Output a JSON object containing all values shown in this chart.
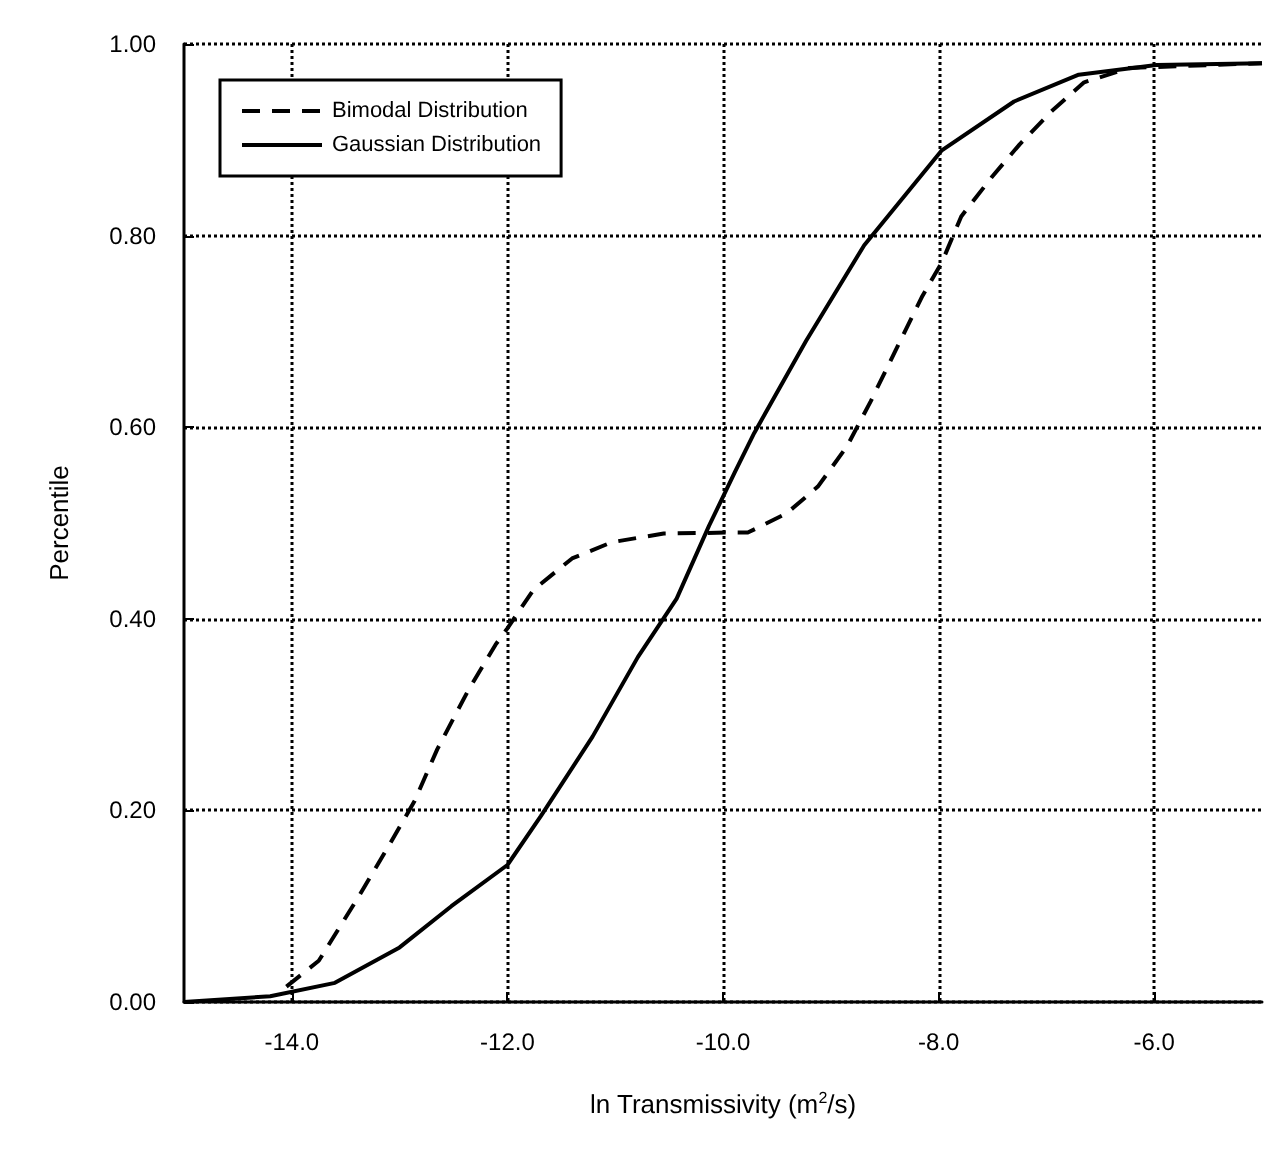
{
  "chart_data": {
    "type": "line",
    "xlabel": "ln Transmissivity (m$^{2}$/s)",
    "ylabel": "Percentile",
    "xlim": [
      -15,
      -5
    ],
    "ylim": [
      0,
      1
    ],
    "xticks": [
      {
        "value": -14,
        "label": "-14.0"
      },
      {
        "value": -12,
        "label": "-12.0"
      },
      {
        "value": -10,
        "label": "-10.0"
      },
      {
        "value": -8,
        "label": "-8.0"
      },
      {
        "value": -6,
        "label": "-6.0"
      }
    ],
    "yticks": [
      {
        "value": 0,
        "label": "0.00"
      },
      {
        "value": 0.2,
        "label": "0.20"
      },
      {
        "value": 0.4,
        "label": "0.40"
      },
      {
        "value": 0.6,
        "label": "0.60"
      },
      {
        "value": 0.8,
        "label": "0.80"
      },
      {
        "value": 1,
        "label": "1.00"
      }
    ],
    "grid": true,
    "legend": "top left",
    "marker": "none",
    "series": [
      {
        "name": "Bimodal Distribution",
        "color": "#000000",
        "line_style": "dashed",
        "x": [
          -14.05,
          -13.75,
          -13.38,
          -13.08,
          -12.86,
          -12.65,
          -12.36,
          -12.11,
          -12.0,
          -11.76,
          -11.4,
          -11.03,
          -10.55,
          -9.95,
          -9.77,
          -9.41,
          -9.12,
          -8.85,
          -8.63,
          -8.4,
          -8.15,
          -7.97,
          -7.79,
          -7.5,
          -7.25,
          -6.95,
          -6.65,
          -6.23,
          -5.0
        ],
        "values": [
          0.016,
          0.043,
          0.11,
          0.167,
          0.21,
          0.264,
          0.326,
          0.373,
          0.39,
          0.43,
          0.463,
          0.48,
          0.489,
          0.49,
          0.49,
          0.51,
          0.538,
          0.58,
          0.627,
          0.68,
          0.737,
          0.772,
          0.82,
          0.862,
          0.895,
          0.93,
          0.96,
          0.975,
          0.98
        ]
      },
      {
        "name": "Gaussian Distribution",
        "color": "#000000",
        "line_style": "solid",
        "x": [
          -15.0,
          -14.2,
          -13.6,
          -13.0,
          -12.52,
          -12.0,
          -11.69,
          -11.21,
          -10.79,
          -10.43,
          -10.13,
          -9.89,
          -9.71,
          -9.23,
          -8.69,
          -7.97,
          -7.3,
          -6.7,
          -5.98,
          -5.0
        ],
        "values": [
          0.0,
          0.006,
          0.02,
          0.057,
          0.1,
          0.143,
          0.194,
          0.277,
          0.36,
          0.421,
          0.497,
          0.553,
          0.594,
          0.69,
          0.79,
          0.889,
          0.94,
          0.968,
          0.978,
          0.98
        ]
      }
    ]
  }
}
